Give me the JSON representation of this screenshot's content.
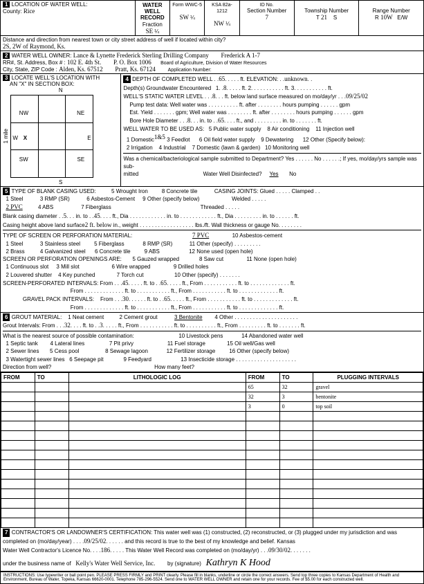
{
  "header": {
    "title": "WATER WELL RECORD",
    "form": "Form WWC-5",
    "ksa": "KSA 82a-1212",
    "id_label": "ID No."
  },
  "loc": {
    "label": "LOCATION OF WATER WELL:",
    "county_label": "County:",
    "county": "Rice",
    "fraction_label": "Fraction",
    "f1": "SE",
    "q1": "¼",
    "f2": "SW",
    "q2": "¼",
    "f3": "NW",
    "q3": "¼",
    "section_label": "Section Number",
    "section": "7",
    "township_label": "Township Number",
    "township_t": "T",
    "township": "21",
    "township_s": "S",
    "range_label": "Range Number",
    "range_r": "R",
    "range": "10W",
    "range_ew": "E/W",
    "distance_label": "Distance and direction from nearest town or city street address of well if located within city?",
    "distance": "2S, 2W of Raymond, Ks."
  },
  "owner": {
    "label": "WATER WELL OWNER:",
    "name": "Lance & Lynette Frederick Sterling Drilling Company",
    "right": "Frederick A 1-7",
    "rr_label": "RR#, St. Address, Box #",
    "rr": "102 E. 4th St.",
    "po": "P. O. Box 1006",
    "board": "Board of Agriculture, Division of Water Resources",
    "city_label": "City, State, ZIP Code",
    "city": "Alden, Ks. 67512",
    "city2": "Pratt, Ks. 67124",
    "app_label": "Application Number:"
  },
  "locate": {
    "label": "LOCATE WELL'S LOCATION WITH",
    "xbox": "AN \"X\" IN SECTION BOX:",
    "n": "N",
    "s": "S",
    "e": "E",
    "w": "W",
    "nw": "NW",
    "ne": "NE",
    "sw": "SW",
    "se": "SE",
    "x": "X",
    "mile": "1 mile"
  },
  "depth": {
    "label": "DEPTH OF COMPLETED WELL",
    "depth_val": "65",
    "elev_label": "ft. ELEVATION:",
    "elev": "unknown",
    "gw_label": "Depth(s) Groundwater Encountered",
    "gw1": "8",
    "gw2": "2",
    "gw3": "3",
    "static_label": "WELL'S STATIC WATER LEVEL",
    "static": "8",
    "static_txt": "ft. below land surface measured on mo/day/yr",
    "date": "09/25/02",
    "pump_label": "Pump test data: Well water was",
    "pump_after": "ft. after",
    "pump_hrs": "hours pumping",
    "pump_gpm": "gpm",
    "est_label": "Est. Yield",
    "est_gpm": "gpm; Well water was",
    "bore_label": "Bore Hole Diameter",
    "bore1": "8",
    "bore_to": "in. to",
    "bore2": "65",
    "bore_ft": "ft., and",
    "bore_in2": "in. to",
    "bore_ft2": "ft.",
    "use_label": "WELL WATER TO BE USED AS:",
    "use1": "1 Domestic",
    "use2": "2 Irrigation",
    "use3": "3 Feedlot",
    "use4": "4 Industrial",
    "use5": "5 Public water supply",
    "use6": "6 Oil field water supply",
    "use7": "7 Domestic (lawn & garden)",
    "use8": "8 Air conditioning",
    "use9": "9 Dewatering",
    "use10": "10 Monitoring well",
    "use11": "11 Injection well",
    "use12": "12 Other (Specify below):",
    "use_marked": "1&5",
    "chem_label": "Was a chemical/bacteriological sample submitted to Department? Yes",
    "chem_no": "No",
    "chem_if": "; If yes, mo/day/yrs sample was sub-",
    "mitted": "mitted",
    "disinfect": "Water Well Disinfected?",
    "dis_yes": "Yes",
    "dis_no": "No"
  },
  "casing": {
    "label": "TYPE OF BLANK CASING USED:",
    "c1": "1 Steel",
    "c2": "2 PVC",
    "c3": "3 RMP (SR)",
    "c4": "4 ABS",
    "c5": "5 Wrought Iron",
    "c6": "6 Asbestos-Cement",
    "c7": "7 Fiberglass",
    "c8": "8 Concrete tile",
    "c9": "9 Other (specify below)",
    "marked": "2 PVC",
    "joints_label": "CASING JOINTS: Glued",
    "joints2": "Clamped",
    "joints3": "Welded",
    "joints4": "Threaded",
    "diam_label": "Blank casing diameter",
    "diam": "5",
    "diam_in": "in. to",
    "diam_to": "45",
    "diam_ft": "ft., Dia",
    "diam_in2": "in. to",
    "diam_ft2": "ft., Dia",
    "diam_in3": "in. to",
    "diam_ft3": "ft.",
    "height_label": "Casing height above land surface",
    "height": "2  ft. below",
    "weight": "in., weight",
    "lbs": "lbs./ft. Wall thickness or gauge No."
  },
  "screen": {
    "label": "TYPE OF SCREEN OR PERFORATION MATERIAL:",
    "s1": "1 Steel",
    "s2": "2 Brass",
    "s3": "3 Stainless steel",
    "s4": "4 Galvanized steel",
    "s5": "5 Fiberglass",
    "s6": "6 Concrete tile",
    "s7": "7 PVC",
    "s8": "8 RMP (SR)",
    "s9": "9 ABS",
    "s10": "10 Asbestos-cement",
    "s11": "11 Other (specify)",
    "s12": "12 None used (open hole)",
    "open_label": "SCREEN OR PERFORATION OPENINGS ARE:",
    "o1": "1 Continuous slot",
    "o2": "2 Louvered shutter",
    "o3": "3 Mill slot",
    "o4": "4 Key punched",
    "o5": "5 Gauzed wrapped",
    "o6": "6 Wire wrapped",
    "o7": "7 Torch cut",
    "o8": "8 Saw cut",
    "o9": "9 Drilled holes",
    "o10": "10 Other (specify)",
    "o11": "11 None (open hole)",
    "perf_label": "SCREEN-PERFORATED INTERVALS: From",
    "perf_from": "45",
    "perf_to": "ft. to",
    "perf_to_v": "65",
    "perf_ft": "ft., From",
    "perf_ft2": "ft. to",
    "perf_ft3": "ft.",
    "gravel_label": "GRAVEL PACK INTERVALS:",
    "gravel_from": "From",
    "gravel_v": "30",
    "gravel_to": "ft. to",
    "gravel_tov": "65"
  },
  "grout": {
    "label": "GROUT MATERIAL:",
    "g1": "1 Neat cement",
    "g2": "2 Cement grout",
    "g3": "3 Bentonite",
    "g4": "4 Other",
    "intervals": "Grout Intervals: From",
    "gi_from": "32",
    "gi_to": "ft. to",
    "gi_tov": "3",
    "gi_ft": "ft., From",
    "gi_ft2": "ft. to",
    "gi_ft3": "ft., From",
    "gi_ft4": "ft. to",
    "gi_ft5": "ft.",
    "contam_label": "What is the nearest source of possible contamination:",
    "p1": "1 Septic tank",
    "p2": "2 Sewer lines",
    "p3": "3 Watertight sewer lines",
    "p4": "4 Lateral lines",
    "p5": "5 Cess pool",
    "p6": "6 Seepage pit",
    "p7": "7 Pit privy",
    "p8": "8 Sewage lagoon",
    "p9": "9 Feedyard",
    "p10": "10 Livestock pens",
    "p11": "11 Fuel storage",
    "p12": "12 Fertilizer storage",
    "p13": "13 Insecticide storage",
    "p14": "14 Abandoned water well",
    "p15": "15 Oil well/Gas well",
    "p16": "16 Other (specify below)",
    "dir": "Direction from well?",
    "feet": "How many feet?"
  },
  "log": {
    "from": "FROM",
    "to": "TO",
    "lith": "LITHOLOGIC LOG",
    "plug": "PLUGGING INTERVALS",
    "rows": [
      {
        "from": "65",
        "to": "32",
        "lith": "gravel"
      },
      {
        "from": "32",
        "to": "3",
        "lith": "bentonite"
      },
      {
        "from": "3",
        "to": "0",
        "lith": "top soil"
      }
    ]
  },
  "cert": {
    "label": "CONTRACTOR'S OR LANDOWNER'S CERTIFICATION: This water well was (1) constructed, (2) reconstructed, or (3) plugged under my jurisdiction and was",
    "comp": "completed on (mo/day/year)",
    "comp_v": "09/25/02",
    "record": "and this record is true to the best of my knowledge and belief. Kansas",
    "lic": "Water Well Contractor's Licence No.",
    "lic_v": "186",
    "rec2": "This Water Well Record was completed on (mo/day/yr)",
    "rec2_v": "09/30/02",
    "bus": "under the business name of",
    "bus_v": "Kelly's Water Well Service, Inc.",
    "sig_label": "by (signature)",
    "sig": "Kathryn K Hood"
  },
  "instr": "INSTRUCTIONS: Use typewriter or ball point pen. PLEASE PRESS FIRMLY and PRINT clearly. Please fill in blanks, underline or circle the correct answers. Send top three copies to Kansas Department of Health and Environment, Bureau of Water, Topeka, Kansas 66620-0001. Telephone 785-296-5524. Send one to WATER WELL OWNER and retain one for your records. Fee of $5.00 for each constructed well."
}
